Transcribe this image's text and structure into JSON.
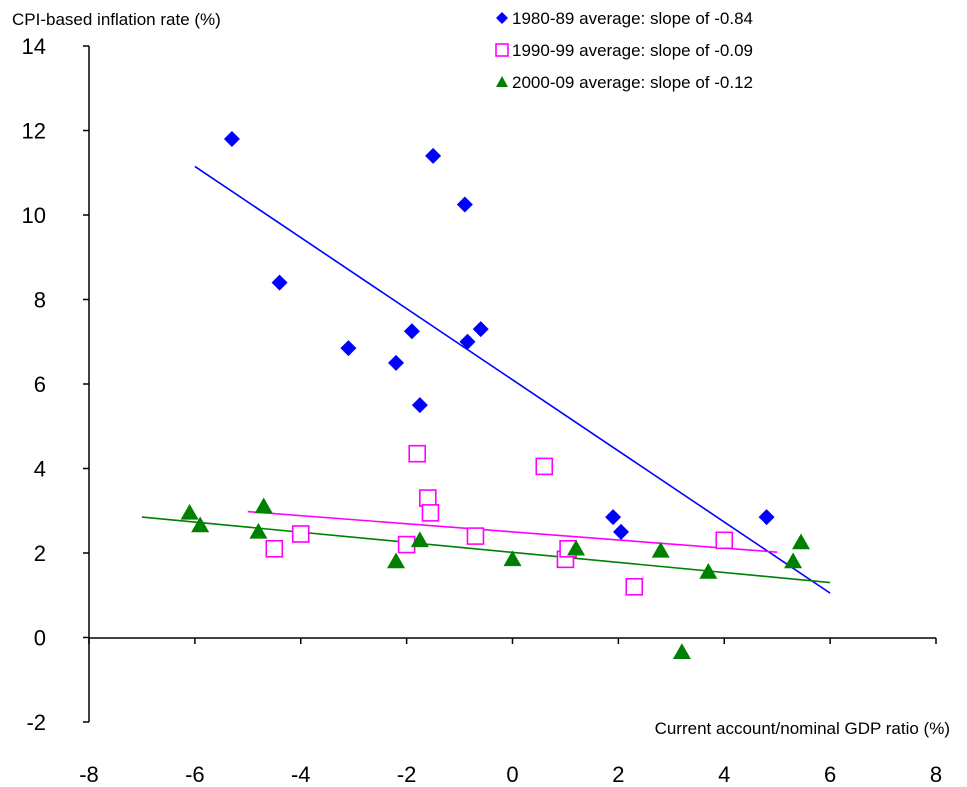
{
  "chart_data": {
    "type": "scatter",
    "title": "",
    "xlabel": "Current account/nominal GDP ratio (%)",
    "ylabel": "CPI-based inflation rate (%)",
    "xlim": [
      -8,
      8
    ],
    "ylim": [
      -2,
      14
    ],
    "x_ticks": [
      -8,
      -6,
      -4,
      -2,
      0,
      2,
      4,
      6,
      8
    ],
    "y_ticks": [
      -2,
      0,
      2,
      4,
      6,
      8,
      10,
      12,
      14
    ],
    "grid": false,
    "legend_position": "top-right",
    "series": [
      {
        "name": "1980-89 average: slope of -0.84",
        "marker": "diamond",
        "color": "#0000ff",
        "points": [
          [
            -5.3,
            11.8
          ],
          [
            -4.4,
            8.4
          ],
          [
            -3.1,
            6.85
          ],
          [
            -2.2,
            6.5
          ],
          [
            -1.9,
            7.25
          ],
          [
            -1.75,
            5.5
          ],
          [
            -1.5,
            11.4
          ],
          [
            -0.9,
            10.25
          ],
          [
            -0.85,
            7.0
          ],
          [
            -0.6,
            7.3
          ],
          [
            1.9,
            2.85
          ],
          [
            2.05,
            2.5
          ],
          [
            4.8,
            2.85
          ]
        ],
        "trendline": {
          "x": [
            -6.0,
            6.0
          ],
          "y": [
            11.15,
            1.05
          ],
          "color": "#0000ff"
        }
      },
      {
        "name": "1990-99 average: slope of -0.09",
        "marker": "square-open",
        "color": "#ff00ff",
        "points": [
          [
            -4.5,
            2.1
          ],
          [
            -4.0,
            2.45
          ],
          [
            -2.0,
            2.2
          ],
          [
            -1.8,
            4.35
          ],
          [
            -1.6,
            3.3
          ],
          [
            -1.55,
            2.95
          ],
          [
            -0.7,
            2.4
          ],
          [
            0.6,
            4.05
          ],
          [
            1.0,
            1.85
          ],
          [
            1.05,
            2.1
          ],
          [
            2.3,
            1.2
          ],
          [
            4.0,
            2.3
          ]
        ],
        "trendline": {
          "x": [
            -5.0,
            5.0
          ],
          "y": [
            2.98,
            2.02
          ],
          "color": "#ff00ff"
        }
      },
      {
        "name": "2000-09 average: slope of -0.12",
        "marker": "triangle",
        "color": "#008000",
        "points": [
          [
            -6.1,
            2.95
          ],
          [
            -5.9,
            2.65
          ],
          [
            -4.8,
            2.5
          ],
          [
            -4.7,
            3.1
          ],
          [
            -2.2,
            1.8
          ],
          [
            -1.75,
            2.3
          ],
          [
            0.0,
            1.85
          ],
          [
            1.2,
            2.1
          ],
          [
            2.8,
            2.05
          ],
          [
            3.2,
            -0.35
          ],
          [
            3.7,
            1.55
          ],
          [
            5.3,
            1.8
          ],
          [
            5.45,
            2.25
          ]
        ],
        "trendline": {
          "x": [
            -7.0,
            6.0
          ],
          "y": [
            2.85,
            1.3
          ],
          "color": "#008000"
        }
      }
    ]
  }
}
